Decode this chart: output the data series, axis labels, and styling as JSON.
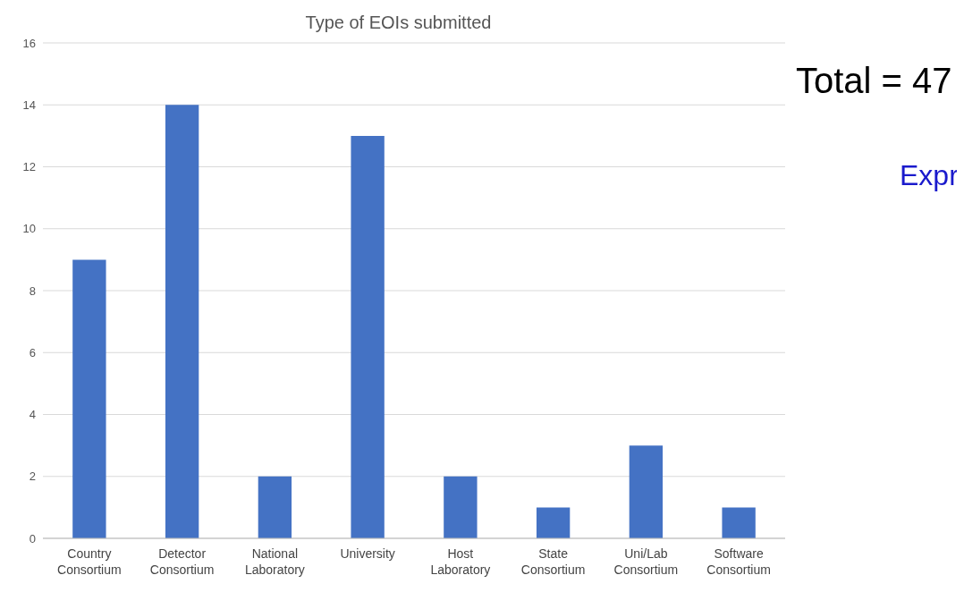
{
  "chart_data": {
    "type": "bar",
    "title": "Type of EOIs submitted",
    "categories": [
      "Country Consortium",
      "Detector Consortium",
      "National Laboratory",
      "University",
      "Host Laboratory",
      "State Consortium",
      "Uni/Lab Consortium",
      "Software Consortium"
    ],
    "values": [
      9,
      14,
      2,
      13,
      2,
      1,
      3,
      1
    ],
    "color": "#4472c4",
    "ylim": [
      0,
      16
    ],
    "yticks": [
      0,
      2,
      4,
      6,
      8,
      10,
      12,
      14,
      16
    ],
    "grid": "y",
    "annotations": [
      "Total = 47",
      "Expr"
    ]
  }
}
